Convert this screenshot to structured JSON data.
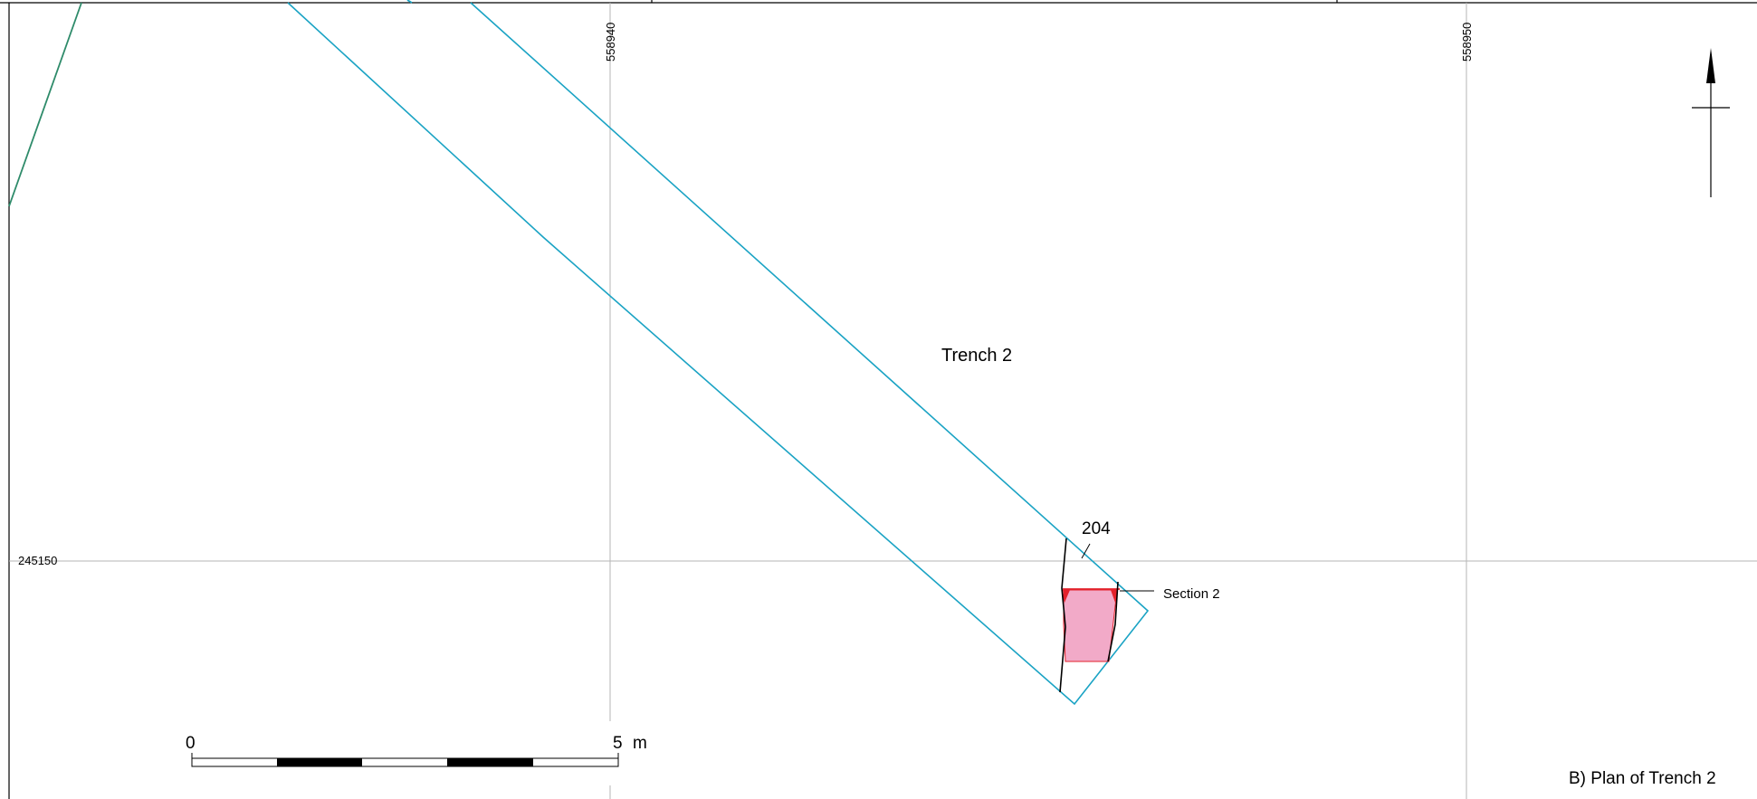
{
  "grid": {
    "easting_labels": [
      "558940",
      "558950"
    ],
    "northing_labels": [
      "245150"
    ]
  },
  "labels": {
    "trench": "Trench 2",
    "feature": "204",
    "section": "Section 2",
    "caption": "B) Plan of Trench 2"
  },
  "scale_bar": {
    "start": "0",
    "end": "5",
    "unit": "m"
  },
  "colors": {
    "trench_outline": "#1aa3c4",
    "feature_fill": "#f2aac8",
    "section_line": "#e3212b",
    "boundary_line": "#2e8b6a",
    "grid_line": "#b0b0b0"
  },
  "icons": {
    "north_arrow": "north-arrow-icon"
  }
}
